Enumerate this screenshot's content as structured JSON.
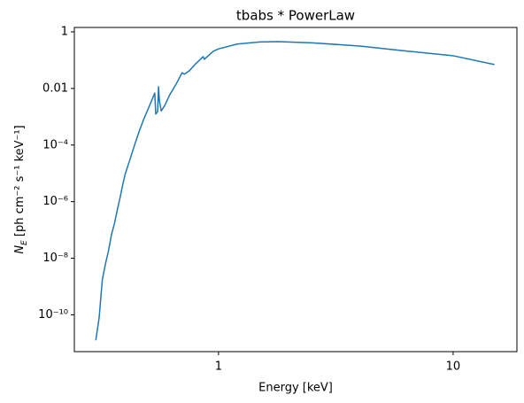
{
  "chart_data": {
    "type": "line",
    "title": "tbabs * PowerLaw",
    "x_label": "Energy [keV]",
    "y_label": [
      "N",
      "E",
      " [ph cm⁻² s⁻¹ keV⁻¹]"
    ],
    "log_x": true,
    "log_y": true,
    "xlim": [
      0.243,
      18.7
    ],
    "ylim": [
      5e-12,
      1.43
    ],
    "xticks": [
      1,
      10
    ],
    "yticks": [
      {
        "value": 1e-10,
        "label": "10⁻¹⁰"
      },
      {
        "value": 1e-08,
        "label": "10⁻⁸"
      },
      {
        "value": 1e-06,
        "label": "10⁻⁶"
      },
      {
        "value": 0.0001,
        "label": "10⁻⁴"
      },
      0.01,
      1
    ],
    "series": [
      {
        "color": "#1f77b4",
        "x": [
          0.3,
          0.31,
          0.315,
          0.32,
          0.33,
          0.34,
          0.35,
          0.36,
          0.37,
          0.38,
          0.39,
          0.4,
          0.42,
          0.44,
          0.46,
          0.48,
          0.5,
          0.52,
          0.535,
          0.54,
          0.55,
          0.555,
          0.56,
          0.57,
          0.59,
          0.62,
          0.66,
          0.7,
          0.715,
          0.75,
          0.8,
          0.86,
          0.87,
          0.95,
          1.0,
          1.2,
          1.5,
          1.8,
          2.5,
          4,
          6,
          10,
          15
        ],
        "values": [
          1.26e-11,
          8e-11,
          4e-10,
          1.8e-09,
          6.5e-09,
          1.9e-08,
          7e-08,
          1.65e-07,
          4.9e-07,
          1.3e-06,
          3.7e-06,
          9.3e-06,
          3.2e-05,
          0.000107,
          0.00032,
          0.00081,
          0.0018,
          0.0039,
          0.0069,
          0.00125,
          0.0015,
          0.0115,
          0.0036,
          0.0016,
          0.0025,
          0.006,
          0.0144,
          0.036,
          0.032,
          0.042,
          0.075,
          0.133,
          0.107,
          0.206,
          0.25,
          0.37,
          0.44,
          0.45,
          0.41,
          0.316,
          0.22,
          0.143,
          0.07
        ]
      }
    ]
  }
}
